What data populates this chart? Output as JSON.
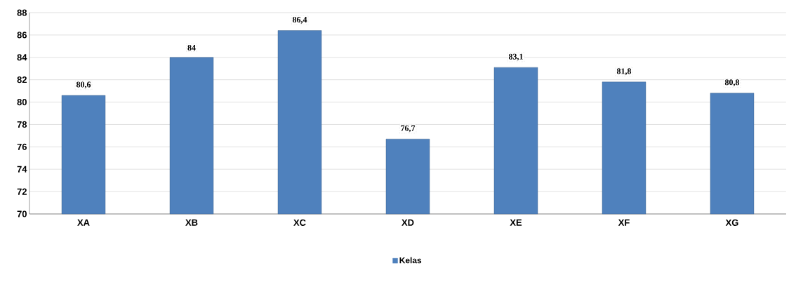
{
  "chart_data": {
    "type": "bar",
    "categories": [
      "XA",
      "XB",
      "XC",
      "XD",
      "XE",
      "XF",
      "XG"
    ],
    "series": [
      {
        "name": "Kelas",
        "color": "#4f81bd",
        "values": [
          80.6,
          84,
          86.4,
          76.7,
          83.1,
          81.8,
          80.8
        ],
        "value_labels": [
          "80,6",
          "84",
          "86,4",
          "76,7",
          "83,1",
          "81,8",
          "80,8"
        ]
      }
    ],
    "ylim": [
      70,
      88
    ],
    "yticks": [
      70,
      72,
      74,
      76,
      78,
      80,
      82,
      84,
      86,
      88
    ],
    "grid": "y",
    "legend": "bottom"
  }
}
